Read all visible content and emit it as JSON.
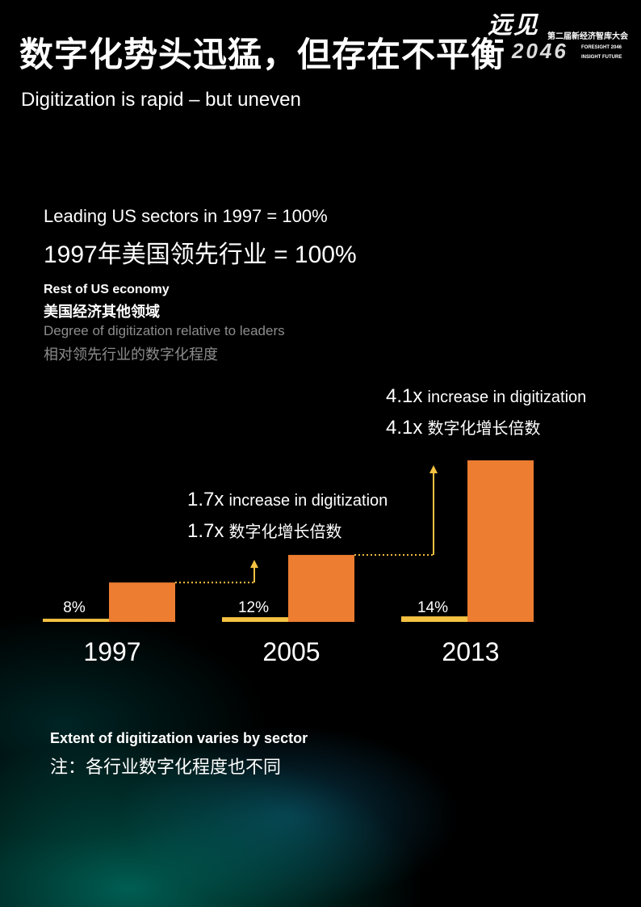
{
  "header": {
    "title_zh": "数字化势头迅猛，但存在不平衡",
    "title_en": "Digitization is rapid – but uneven",
    "logo": {
      "mark": "远见",
      "year": "2046",
      "event_zh": "第二届新经济智库大会",
      "tag1": "FORESIGHT 2046",
      "tag2": "INSIGHT FUTURE"
    }
  },
  "legend": {
    "leading_en": "Leading US sectors in 1997 = 100%",
    "leading_zh": "1997年美国领先行业 = 100%",
    "rest_en": "Rest of US economy",
    "rest_zh": "美国经济其他领域",
    "degree_en": "Degree of digitization relative to leaders",
    "degree_zh": "相对领先行业的数字化程度"
  },
  "multipliers": [
    {
      "value": "1.7x",
      "en": "increase in digitization",
      "zh": "数字化增长倍数"
    },
    {
      "value": "4.1x",
      "en": "increase in digitization",
      "zh": "数字化增长倍数"
    }
  ],
  "note": {
    "en": "Extent of digitization varies by sector",
    "zh": "注：各行业数字化程度也不同"
  },
  "colors": {
    "bar_leading": "#ED7D31",
    "bar_rest": "#F5C242",
    "arrow": "#F5C242",
    "text": "#FFFFFF",
    "muted": "#8C8C8C"
  },
  "chart_data": {
    "type": "bar",
    "categories": [
      "1997",
      "2005",
      "2013"
    ],
    "series": [
      {
        "name": "Rest of US economy",
        "values": [
          8,
          12,
          14
        ],
        "labels": [
          "8%",
          "12%",
          "14%"
        ]
      },
      {
        "name": "Leading US sectors",
        "values": [
          100,
          170,
          410
        ]
      }
    ],
    "ylim": [
      0,
      410
    ]
  }
}
